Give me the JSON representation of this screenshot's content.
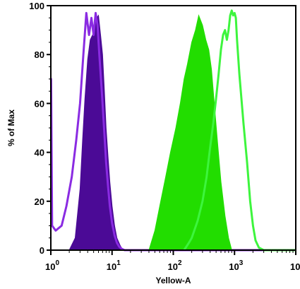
{
  "chart_data": {
    "type": "area",
    "xlabel": "Yellow-A",
    "ylabel": "% of Max",
    "xscale": "log",
    "xlim": [
      1,
      10000
    ],
    "ylim": [
      0,
      100
    ],
    "x_ticks": [
      {
        "value": 1,
        "base": "10",
        "exp": "0"
      },
      {
        "value": 10,
        "base": "10",
        "exp": "1"
      },
      {
        "value": 100,
        "base": "10",
        "exp": "2"
      },
      {
        "value": 1000,
        "base": "10",
        "exp": "3"
      },
      {
        "value": 10000,
        "base": "10",
        "exp": "4"
      }
    ],
    "y_ticks": [
      "0",
      "20",
      "40",
      "60",
      "80",
      "100"
    ],
    "series": [
      {
        "style": "filled",
        "color": "#4b0a96",
        "x": [
          2.0,
          2.5,
          3.0,
          3.3,
          3.6,
          4.0,
          4.4,
          4.8,
          5.2,
          5.6,
          6.0,
          6.5,
          7.0,
          7.5,
          8.0,
          8.6,
          9.2,
          10.0,
          11.0,
          12.0,
          13.5,
          15.0
        ],
        "y": [
          0,
          5,
          25,
          45,
          62,
          78,
          86,
          88,
          90,
          95,
          96,
          88,
          80,
          65,
          50,
          38,
          28,
          18,
          10,
          5,
          2,
          0
        ]
      },
      {
        "style": "outline",
        "color": "#8a2be2",
        "x": [
          1.0,
          1.01,
          1.05,
          1.2,
          1.5,
          1.8,
          2.2,
          2.6,
          3.0,
          3.4,
          3.8,
          4.2,
          4.6,
          5.0,
          5.4,
          5.8,
          6.2,
          6.8,
          7.4,
          8.0,
          8.6,
          9.2,
          10.0,
          11.0,
          12.0,
          13.0,
          14.5,
          16.0,
          20.0,
          100.0,
          10000.0
        ],
        "y": [
          70,
          70,
          10,
          8,
          10,
          18,
          30,
          45,
          60,
          80,
          97,
          88,
          95,
          88,
          97,
          92,
          80,
          65,
          50,
          36,
          26,
          18,
          11,
          6,
          3,
          1.5,
          0.5,
          0,
          0,
          0,
          0
        ]
      },
      {
        "style": "filled",
        "color": "#22dd00",
        "x": [
          40,
          50,
          60,
          75,
          90,
          110,
          130,
          150,
          170,
          200,
          230,
          260,
          300,
          340,
          380,
          420,
          460,
          520,
          600,
          700,
          800,
          900
        ],
        "y": [
          0,
          8,
          18,
          30,
          40,
          50,
          60,
          70,
          76,
          85,
          90,
          96,
          92,
          86,
          82,
          74,
          62,
          46,
          28,
          14,
          5,
          0
        ]
      },
      {
        "style": "outline",
        "color": "#3df53d",
        "x": [
          150,
          180,
          200,
          250,
          300,
          350,
          400,
          450,
          500,
          550,
          600,
          650,
          700,
          750,
          800,
          850,
          900,
          950,
          1000,
          1050,
          1100,
          1200,
          1400,
          1600,
          1800,
          2000,
          2200,
          2500,
          3000,
          10000
        ],
        "y": [
          0,
          3,
          5,
          12,
          20,
          30,
          42,
          52,
          62,
          72,
          82,
          88,
          90,
          86,
          90,
          96,
          98,
          96,
          97,
          95,
          86,
          72,
          52,
          36,
          20,
          10,
          4,
          1,
          0,
          0
        ]
      }
    ]
  }
}
